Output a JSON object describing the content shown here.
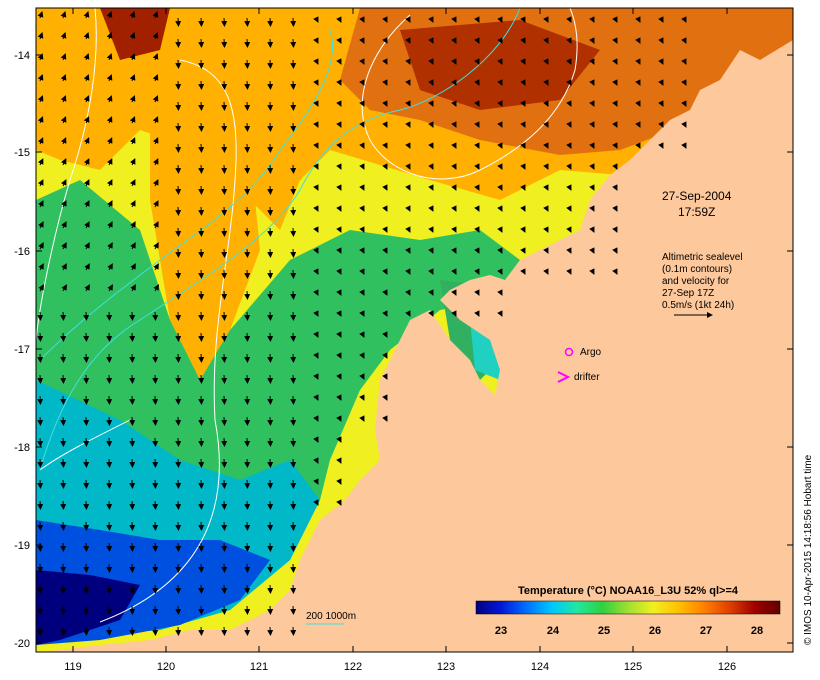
{
  "map": {
    "lon_ticks": [
      "119",
      "120",
      "121",
      "122",
      "123",
      "124",
      "125",
      "126"
    ],
    "lat_ticks": [
      "-14",
      "-15",
      "-16",
      "-17",
      "-18",
      "-19",
      "-20"
    ]
  },
  "annotations": {
    "date": "27-Sep-2004",
    "time": "17:59Z",
    "altimetry_lines": [
      "Altimetric sealevel",
      "(0.1m contours)",
      "and velocity for",
      "27-Sep 17Z",
      "0.5m/s (1kt 24h)"
    ],
    "argo_label": "Argo",
    "drifter_label": "drifter",
    "depth_label": "200  1000m"
  },
  "colorbar": {
    "title": "Temperature (°C) NOAA16_L3U 52% ql>=4",
    "ticks": [
      "23",
      "24",
      "25",
      "26",
      "27",
      "28"
    ],
    "colors": [
      "#00007f",
      "#0018d8",
      "#0070ff",
      "#00c8ff",
      "#20e8a0",
      "#30d040",
      "#a0e030",
      "#f0f020",
      "#ffc000",
      "#ff8000",
      "#e04000",
      "#a00000",
      "#600000"
    ]
  },
  "credit": "© IMOS 10-Apr-2015 14:18:56 Hobart time",
  "colors": {
    "land": "#fdc89b",
    "argo": "#ff00ff",
    "drifter": "#ff00ff",
    "isobath": "#40e0e0",
    "contour": "#ffffff"
  }
}
